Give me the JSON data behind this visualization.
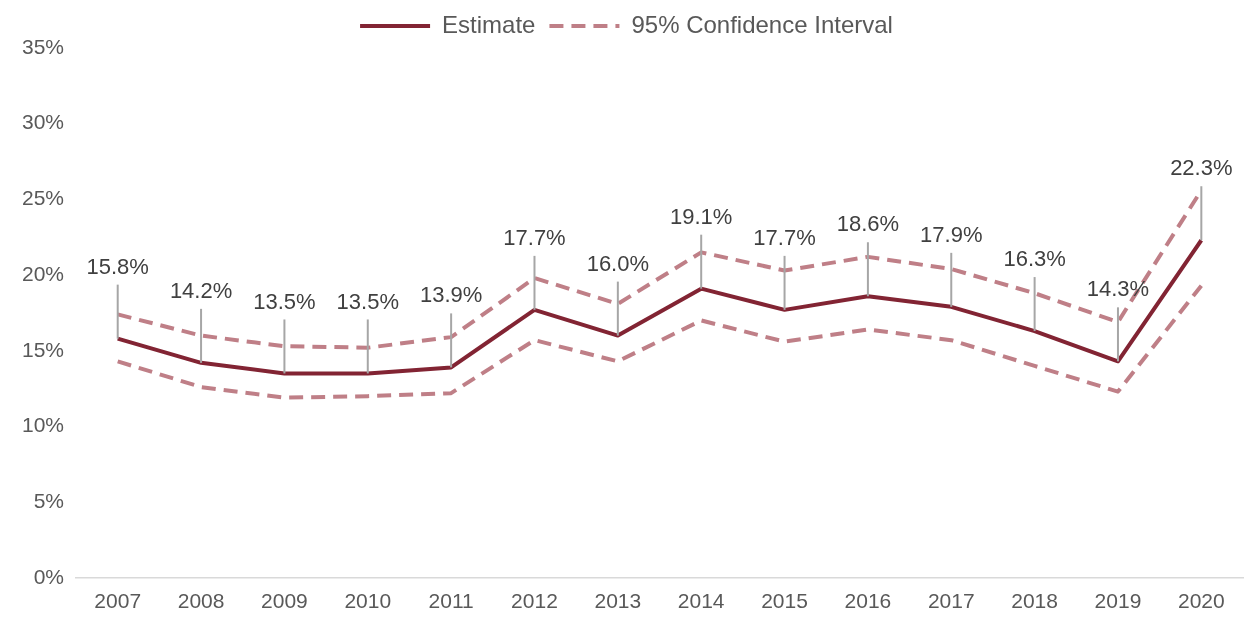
{
  "chart_data": {
    "type": "line",
    "categories": [
      "2007",
      "2008",
      "2009",
      "2010",
      "2011",
      "2012",
      "2013",
      "2014",
      "2015",
      "2016",
      "2017",
      "2018",
      "2019",
      "2020"
    ],
    "series": [
      {
        "name": "Estimate",
        "color": "#822433",
        "line_style": "solid",
        "values": [
          15.8,
          14.2,
          13.5,
          13.5,
          13.9,
          17.7,
          16.0,
          19.1,
          17.7,
          18.6,
          17.9,
          16.3,
          14.3,
          22.3
        ],
        "value_labels": [
          "15.8%",
          "14.2%",
          "13.5%",
          "13.5%",
          "13.9%",
          "17.7%",
          "16.0%",
          "19.1%",
          "17.7%",
          "18.6%",
          "17.9%",
          "16.3%",
          "14.3%",
          "22.3%"
        ]
      },
      {
        "name": "95% Confidence Interval",
        "color": "#bf7f87",
        "line_style": "dashed",
        "values": [
          17.4,
          16.0,
          15.3,
          15.2,
          15.9,
          19.8,
          18.1,
          21.5,
          20.3,
          21.2,
          20.4,
          18.8,
          16.9,
          25.6
        ]
      },
      {
        "color": "#bf7f87",
        "line_style": "dashed",
        "values": [
          14.3,
          12.6,
          11.9,
          12.0,
          12.2,
          15.7,
          14.3,
          17.0,
          15.6,
          16.4,
          15.7,
          14.0,
          12.3,
          19.3
        ]
      }
    ],
    "ylim": [
      0,
      35
    ],
    "yticks": [
      {
        "value": 0,
        "label": "0%"
      },
      {
        "value": 5,
        "label": "5%"
      },
      {
        "value": 10,
        "label": "10%"
      },
      {
        "value": 15,
        "label": "15%"
      },
      {
        "value": 20,
        "label": "20%"
      },
      {
        "value": 25,
        "label": "25%"
      },
      {
        "value": 30,
        "label": "30%"
      },
      {
        "value": 35,
        "label": "35%"
      }
    ],
    "grid": false,
    "legend": "top",
    "marker": "none"
  }
}
